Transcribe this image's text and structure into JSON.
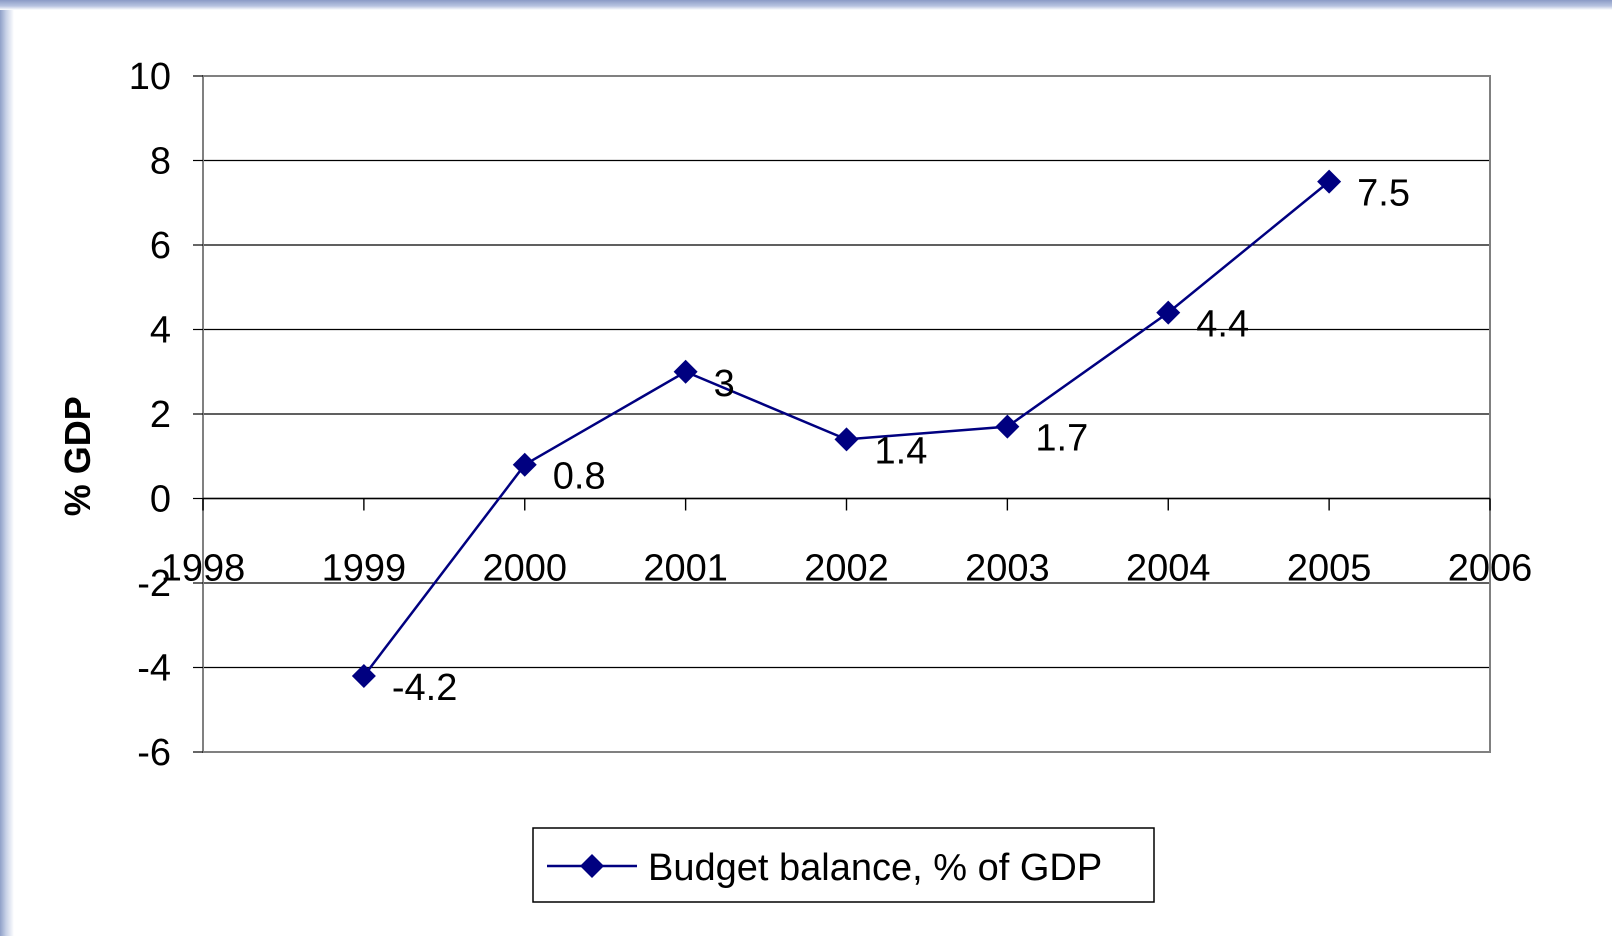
{
  "chart_data": {
    "type": "line",
    "title": "",
    "xlabel": "",
    "ylabel": "% GDP",
    "xlim": [
      1998,
      2006
    ],
    "ylim": [
      -6,
      10
    ],
    "x_ticks": [
      "1998",
      "1999",
      "2000",
      "2001",
      "2002",
      "2003",
      "2004",
      "2005",
      "2006"
    ],
    "y_ticks": [
      "10",
      "8",
      "6",
      "4",
      "2",
      "0",
      "-2",
      "-4",
      "-6"
    ],
    "grid": true,
    "legend_position": "bottom",
    "series": [
      {
        "name": "Budget balance, % of GDP",
        "color": "#000080",
        "marker": "diamond",
        "x": [
          1999,
          2000,
          2001,
          2002,
          2003,
          2004,
          2005
        ],
        "values": [
          -4.2,
          0.8,
          3,
          1.4,
          1.7,
          4.4,
          7.5
        ],
        "labels": [
          "-4.2",
          "0.8",
          "3",
          "1.4",
          "1.7",
          "4.4",
          "7.5"
        ]
      }
    ]
  }
}
